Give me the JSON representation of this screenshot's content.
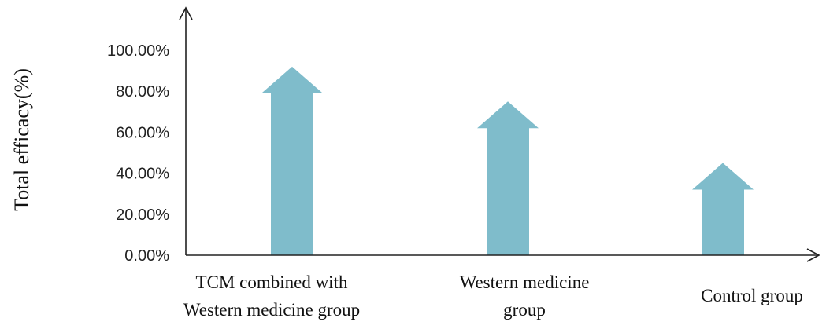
{
  "chart_data": {
    "type": "bar",
    "bar_shape": "arrow",
    "ylabel": "Total efficacy(%)",
    "xlabel": "",
    "ylim": [
      0,
      100
    ],
    "yticks": [
      "0.00%",
      "20.00%",
      "40.00%",
      "60.00%",
      "80.00%",
      "100.00%"
    ],
    "categories": [
      [
        "TCM combined with",
        "Western medicine group"
      ],
      [
        "Western medicine",
        "group"
      ],
      [
        "Control group"
      ]
    ],
    "values": [
      92,
      75,
      45
    ],
    "bar_color": "#7fbccb",
    "grid": false,
    "legend": "none"
  }
}
